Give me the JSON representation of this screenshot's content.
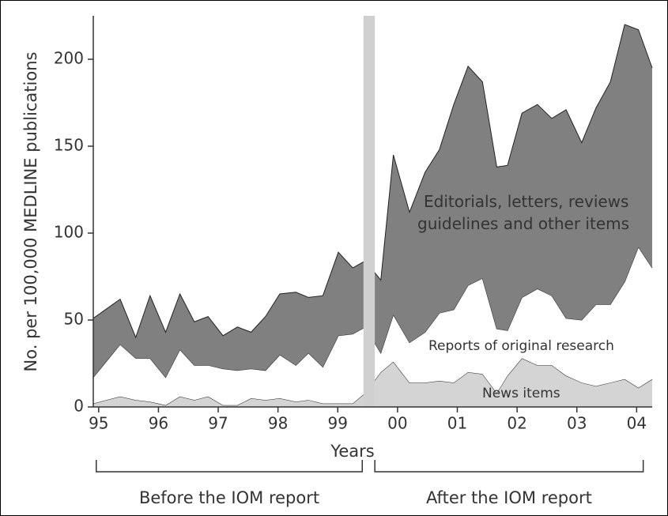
{
  "chart_data": {
    "type": "stacked_area",
    "x_label": "Years",
    "y_label": "No. per 100,000 MEDLINE publications",
    "x": [
      1994.91,
      1995.36,
      1995.62,
      1995.86,
      1996.12,
      1996.36,
      1996.6,
      1996.83,
      1997.08,
      1997.32,
      1997.55,
      1997.79,
      1998.03,
      1998.3,
      1998.51,
      1998.75,
      1999.01,
      1999.25,
      1999.46,
      1999.72,
      1999.93,
      2000.2,
      2000.46,
      2000.7,
      2000.94,
      2001.18,
      2001.42,
      2001.66,
      2001.84,
      2002.08,
      2002.34,
      2002.58,
      2002.82,
      2003.08,
      2003.32,
      2003.56,
      2003.8,
      2004.03,
      2004.26
    ],
    "series": [
      {
        "name": "News items",
        "color": "#d4d4d4",
        "values": [
          2,
          6,
          4,
          3,
          1,
          6,
          4,
          6,
          1,
          1,
          5,
          4,
          5,
          3,
          4,
          2,
          2,
          2,
          8,
          20,
          26,
          14,
          14,
          15,
          14,
          20,
          19,
          8,
          18,
          28,
          24,
          24,
          18,
          14,
          12,
          14,
          16,
          11,
          16
        ]
      },
      {
        "name": "Reports of original research",
        "color": "#ffffff",
        "values": [
          15,
          30,
          24,
          25,
          16,
          27,
          20,
          18,
          21,
          20,
          17,
          17,
          25,
          21,
          27,
          21,
          39,
          40,
          38,
          11,
          27,
          23,
          29,
          39,
          42,
          50,
          55,
          37,
          26,
          35,
          44,
          40,
          33,
          36,
          47,
          45,
          56,
          81,
          64
        ]
      },
      {
        "name": "Editorials, letters, reviews guidelines and other items",
        "color": "#808080",
        "values": [
          34,
          26,
          12,
          36,
          26,
          32,
          25,
          28,
          19,
          25,
          21,
          31,
          35,
          42,
          32,
          41,
          48,
          38,
          38,
          42,
          92,
          75,
          92,
          94,
          118,
          126,
          113,
          93,
          95,
          106,
          106,
          102,
          120,
          102,
          113,
          128,
          148,
          125,
          115
        ]
      }
    ],
    "highlight_x": [
      1999.43,
      1999.62
    ],
    "highlight_color": "#d0d0d0",
    "xlim": [
      1994.91,
      2004.26
    ],
    "xticks": [
      {
        "value": 1995,
        "label": "95"
      },
      {
        "value": 1996,
        "label": "96"
      },
      {
        "value": 1997,
        "label": "97"
      },
      {
        "value": 1998,
        "label": "98"
      },
      {
        "value": 1999,
        "label": "99"
      },
      {
        "value": 2000,
        "label": "00"
      },
      {
        "value": 2001,
        "label": "01"
      },
      {
        "value": 2002,
        "label": "02"
      },
      {
        "value": 2003,
        "label": "03"
      },
      {
        "value": 2004,
        "label": "04"
      }
    ],
    "ylim": [
      0,
      225
    ],
    "yticks": [
      0,
      50,
      100,
      150,
      200
    ],
    "periods": [
      {
        "label": "Before the IOM report",
        "range": [
          1994.96,
          1999.41
        ]
      },
      {
        "label": "After the IOM report",
        "range": [
          1999.62,
          2004.11
        ]
      }
    ]
  }
}
